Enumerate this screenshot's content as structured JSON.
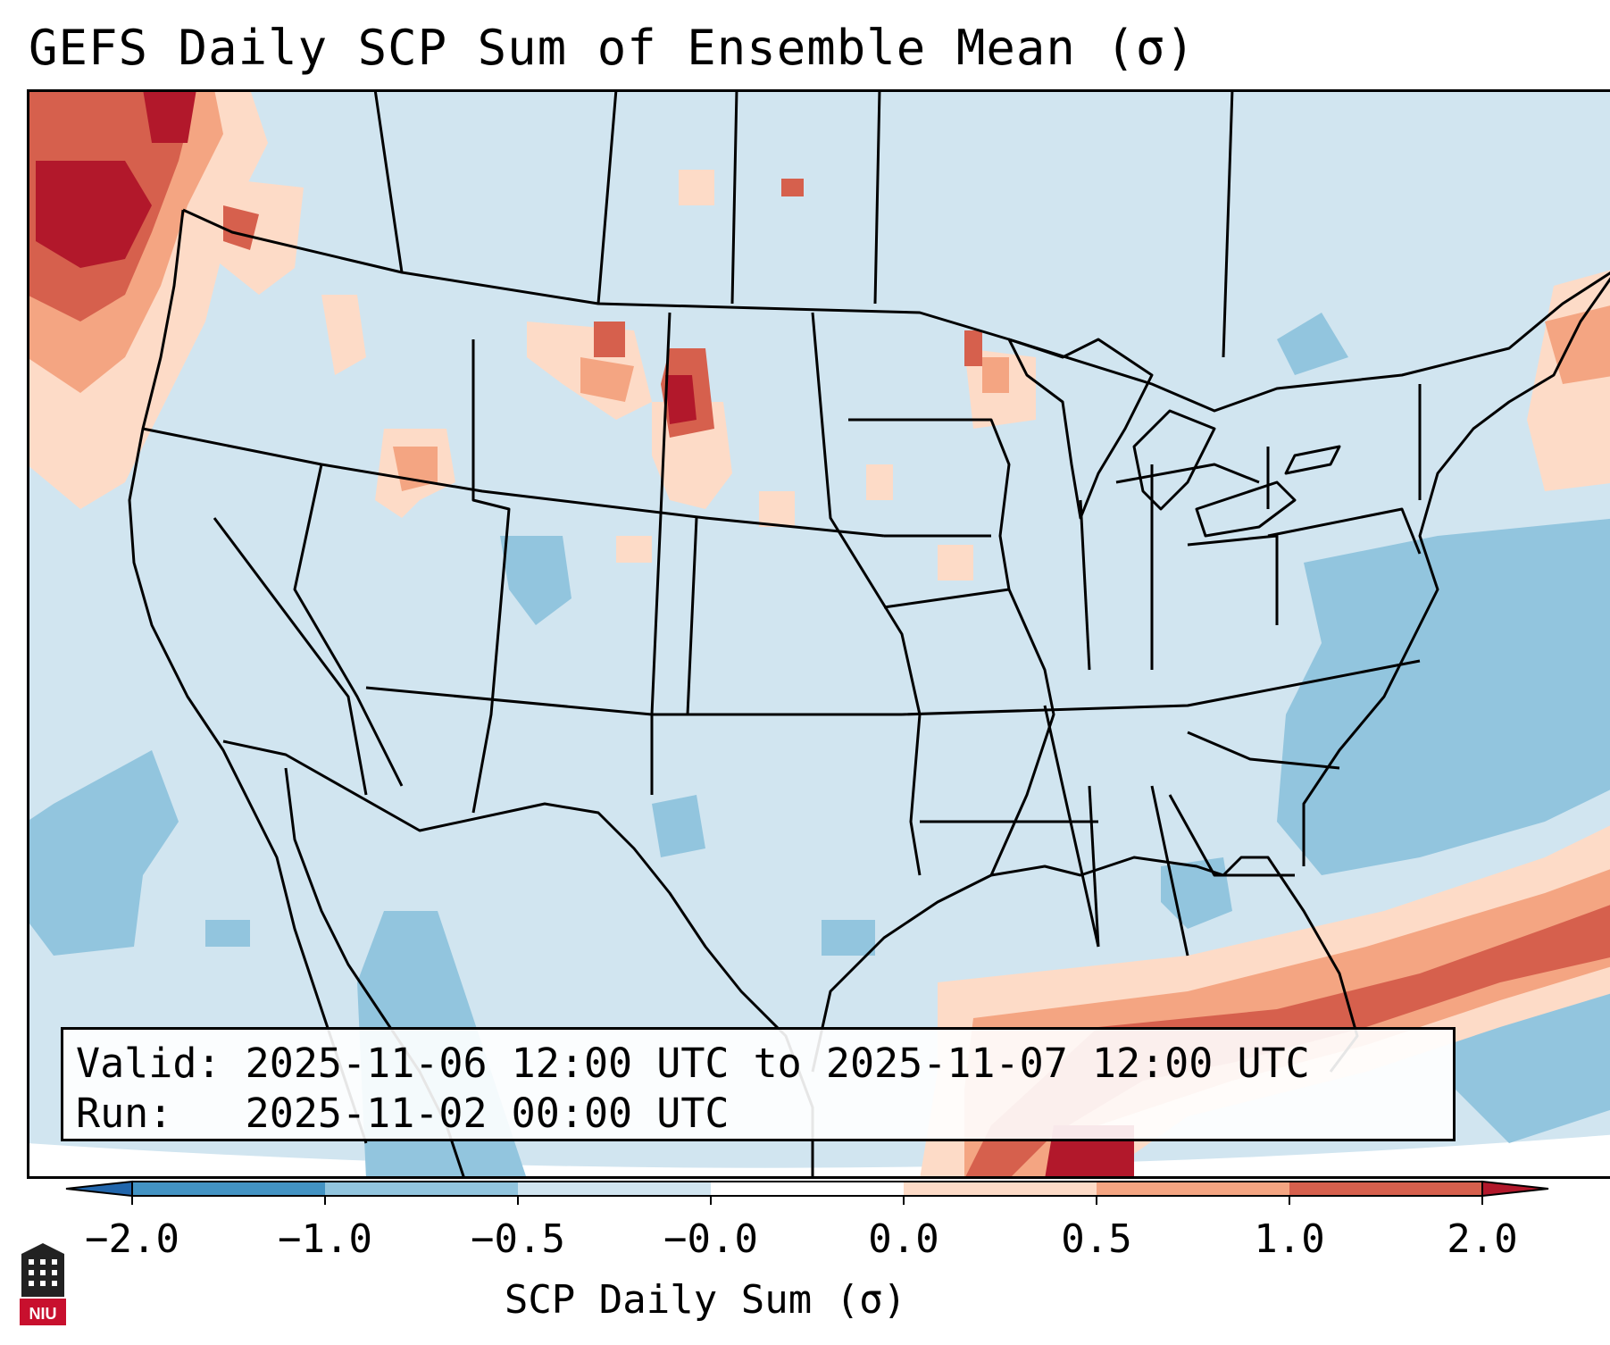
{
  "title": "GEFS Daily SCP Sum of Ensemble Mean (σ)",
  "info": {
    "valid_label": "Valid:",
    "valid_value": "2025-11-06 12:00 UTC to 2025-11-07 12:00 UTC",
    "run_label": "Run:",
    "run_value": "2025-11-02 00:00 UTC"
  },
  "colorbar": {
    "label": "SCP Daily Sum (σ)",
    "ticks": [
      "−2.0",
      "−1.0",
      "−0.5",
      "−0.0",
      "0.0",
      "0.5",
      "1.0",
      "2.0"
    ],
    "colors": [
      "#2166ac",
      "#4393c3",
      "#92c5de",
      "#d1e5f0",
      "#ffffff",
      "#fddbc7",
      "#f4a582",
      "#d6604d",
      "#b2182b"
    ]
  },
  "logo": {
    "text": "NIU",
    "icon": "university-building-icon"
  },
  "colors": {
    "background": "#d1e5f0",
    "light_blue": "#92c5de",
    "light_red": "#fddbc7",
    "mid_red": "#f4a582",
    "red": "#d6604d",
    "dark_red": "#b2182b",
    "boundaries": "#000000"
  }
}
